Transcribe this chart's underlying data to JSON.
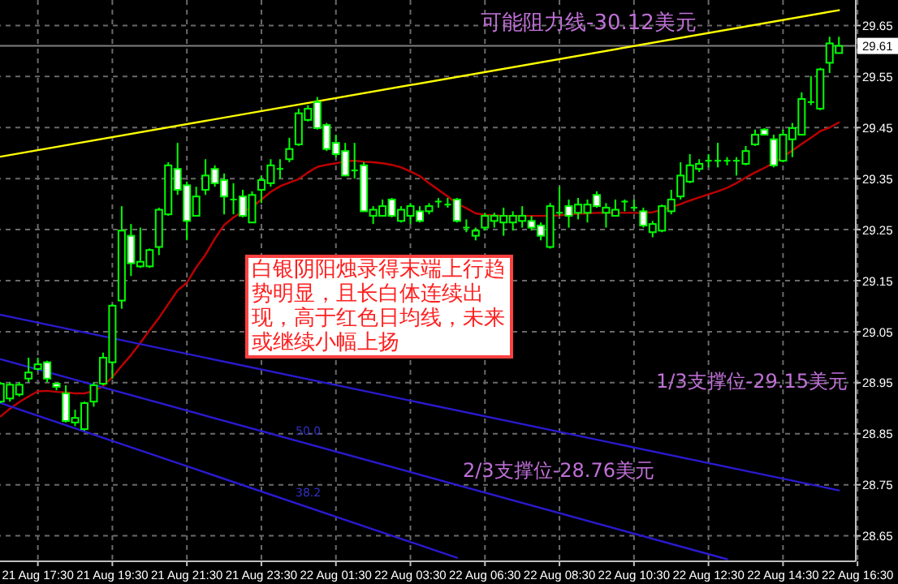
{
  "chart_data": {
    "type": "candlestick",
    "categories": [
      null,
      null,
      null,
      null,
      "21 Aug 17:30",
      null,
      null,
      null,
      null,
      null,
      null,
      null,
      "21 Aug 19:30",
      null,
      null,
      null,
      null,
      null,
      null,
      null,
      "21 Aug 21:30",
      null,
      null,
      null,
      null,
      null,
      null,
      null,
      "21 Aug 23:30",
      null,
      null,
      null,
      null,
      null,
      null,
      null,
      "22 Aug 01:30",
      null,
      null,
      null,
      null,
      null,
      null,
      null,
      "22 Aug 03:30",
      null,
      null,
      null,
      null,
      null,
      null,
      null,
      "22 Aug 06:30",
      null,
      null,
      null,
      null,
      null,
      null,
      null,
      "22 Aug 08:30",
      null,
      null,
      null,
      null,
      null,
      null,
      null,
      "22 Aug 10:30",
      null,
      null,
      null,
      null,
      null,
      null,
      null,
      "22 Aug 12:30",
      null,
      null,
      null,
      null,
      null,
      null,
      null,
      "22 Aug 14:30",
      null,
      null,
      null,
      null,
      null,
      null,
      null,
      "22 Aug 16:30"
    ],
    "ylim": [
      28.6,
      29.7
    ],
    "yticks": [
      28.65,
      28.75,
      28.85,
      28.95,
      29.05,
      29.15,
      29.25,
      29.35,
      29.45,
      29.55,
      29.65
    ],
    "grid": true,
    "color": "#00ff00",
    "ohlc": [
      [
        28.913,
        28.951,
        28.91,
        28.948
      ],
      [
        28.919,
        28.951,
        28.913,
        28.946
      ],
      [
        28.927,
        28.951,
        28.923,
        28.946
      ],
      [
        28.958,
        28.999,
        28.951,
        28.97
      ],
      [
        28.977,
        28.999,
        28.974,
        28.986
      ],
      [
        28.99,
        28.993,
        28.951,
        28.958
      ],
      [
        28.948,
        28.951,
        28.935,
        28.942
      ],
      [
        28.929,
        28.945,
        28.872,
        28.875
      ],
      [
        28.872,
        28.897,
        28.865,
        28.881
      ],
      [
        28.859,
        28.913,
        28.856,
        28.91
      ],
      [
        28.913,
        28.951,
        28.903,
        28.945
      ],
      [
        28.948,
        29.009,
        28.945,
        28.999
      ],
      [
        28.99,
        29.104,
        28.958,
        29.101
      ],
      [
        29.111,
        29.296,
        29.095,
        29.248
      ],
      [
        29.238,
        29.261,
        29.159,
        29.184
      ],
      [
        29.178,
        29.254,
        29.175,
        29.187
      ],
      [
        29.178,
        29.213,
        29.175,
        29.21
      ],
      [
        29.216,
        29.293,
        29.2,
        29.289
      ],
      [
        29.28,
        29.382,
        29.277,
        29.376
      ],
      [
        29.369,
        29.42,
        29.318,
        29.328
      ],
      [
        29.337,
        29.344,
        29.229,
        29.267
      ],
      [
        29.277,
        29.334,
        29.277,
        29.315
      ],
      [
        29.328,
        29.388,
        29.318,
        29.356
      ],
      [
        29.369,
        29.376,
        29.334,
        29.341
      ],
      [
        29.347,
        29.36,
        29.28,
        29.315
      ],
      [
        29.309,
        29.341,
        29.28,
        29.309
      ],
      [
        29.315,
        29.328,
        29.274,
        29.277
      ],
      [
        29.264,
        29.325,
        29.264,
        29.318
      ],
      [
        29.328,
        29.356,
        29.302,
        29.347
      ],
      [
        29.341,
        29.388,
        29.334,
        29.376
      ],
      [
        29.369,
        29.388,
        29.35,
        29.369
      ],
      [
        29.388,
        29.43,
        29.382,
        29.408
      ],
      [
        29.417,
        29.487,
        29.414,
        29.478
      ],
      [
        29.465,
        29.494,
        29.462,
        29.487
      ],
      [
        29.5,
        29.51,
        29.446,
        29.449
      ],
      [
        29.455,
        29.459,
        29.404,
        29.408
      ],
      [
        29.42,
        29.436,
        29.392,
        29.398
      ],
      [
        29.404,
        29.42,
        29.356,
        29.356
      ],
      [
        29.366,
        29.42,
        29.35,
        29.366
      ],
      [
        29.376,
        29.382,
        29.286,
        29.286
      ],
      [
        29.277,
        29.296,
        29.261,
        29.289
      ],
      [
        29.277,
        29.309,
        29.277,
        29.296
      ],
      [
        29.309,
        29.312,
        29.274,
        29.277
      ],
      [
        29.267,
        29.296,
        29.264,
        29.289
      ],
      [
        29.277,
        29.302,
        29.261,
        29.296
      ],
      [
        29.286,
        29.296,
        29.264,
        29.267
      ],
      [
        29.286,
        29.302,
        29.28,
        29.296
      ],
      [
        29.305,
        29.312,
        29.293,
        29.305
      ],
      [
        29.299,
        29.312,
        29.293,
        29.299
      ],
      [
        29.309,
        29.312,
        29.264,
        29.267
      ],
      [
        29.254,
        29.27,
        29.245,
        29.254
      ],
      [
        29.238,
        29.254,
        29.229,
        29.248
      ],
      [
        29.254,
        29.283,
        29.248,
        29.277
      ],
      [
        29.267,
        29.283,
        29.254,
        29.277
      ],
      [
        29.264,
        29.293,
        29.238,
        29.277
      ],
      [
        29.264,
        29.286,
        29.248,
        29.277
      ],
      [
        29.267,
        29.296,
        29.254,
        29.277
      ],
      [
        29.267,
        29.277,
        29.248,
        29.254
      ],
      [
        29.258,
        29.264,
        29.229,
        29.238
      ],
      [
        29.216,
        29.302,
        29.213,
        29.296
      ],
      [
        29.283,
        29.334,
        29.277,
        29.283
      ],
      [
        29.296,
        29.309,
        29.254,
        29.277
      ],
      [
        29.283,
        29.312,
        29.27,
        29.299
      ],
      [
        29.283,
        29.309,
        29.264,
        29.299
      ],
      [
        29.318,
        29.325,
        29.293,
        29.296
      ],
      [
        29.283,
        29.302,
        29.254,
        29.293
      ],
      [
        29.277,
        29.309,
        29.277,
        29.289
      ],
      [
        29.305,
        29.309,
        29.286,
        29.305
      ],
      [
        29.293,
        29.309,
        29.286,
        29.293
      ],
      [
        29.286,
        29.293,
        29.254,
        29.258
      ],
      [
        29.245,
        29.267,
        29.235,
        29.261
      ],
      [
        29.248,
        29.299,
        29.245,
        29.296
      ],
      [
        29.286,
        29.328,
        29.28,
        29.309
      ],
      [
        29.315,
        29.382,
        29.309,
        29.356
      ],
      [
        29.344,
        29.398,
        29.341,
        29.376
      ],
      [
        29.369,
        29.388,
        29.363,
        29.379
      ],
      [
        29.385,
        29.398,
        29.372,
        29.385
      ],
      [
        29.385,
        29.42,
        29.372,
        29.385
      ],
      [
        29.385,
        29.392,
        29.376,
        29.385
      ],
      [
        29.385,
        29.392,
        29.356,
        29.385
      ],
      [
        29.379,
        29.414,
        29.376,
        29.404
      ],
      [
        29.417,
        29.446,
        29.414,
        29.436
      ],
      [
        29.446,
        29.449,
        29.436,
        29.436
      ],
      [
        29.427,
        29.436,
        29.372,
        29.376
      ],
      [
        29.385,
        29.446,
        29.382,
        29.436
      ],
      [
        29.427,
        29.459,
        29.392,
        29.449
      ],
      [
        29.436,
        29.519,
        29.436,
        29.506
      ],
      [
        29.5,
        29.551,
        29.494,
        29.5
      ],
      [
        29.487,
        29.567,
        29.484,
        29.564
      ],
      [
        29.577,
        29.628,
        29.557,
        29.615
      ],
      [
        29.596,
        29.628,
        29.596,
        29.61
      ],
      null,
      null
    ],
    "series": [
      {
        "type": "line",
        "color": "#c00000",
        "values": [
          28.884,
          28.899,
          28.912,
          28.923,
          28.933,
          28.934,
          28.932,
          28.931,
          28.929,
          28.929,
          28.934,
          28.943,
          28.961,
          28.983,
          29.004,
          29.028,
          29.053,
          29.077,
          29.104,
          29.131,
          29.146,
          29.176,
          29.201,
          29.232,
          29.259,
          29.274,
          29.285,
          29.294,
          29.309,
          29.324,
          29.335,
          29.342,
          29.349,
          29.362,
          29.373,
          29.377,
          29.38,
          29.384,
          29.385,
          29.383,
          29.382,
          29.38,
          29.377,
          29.372,
          29.364,
          29.355,
          29.341,
          29.328,
          29.315,
          29.301,
          29.292,
          29.282,
          29.279,
          29.278,
          29.277,
          29.277,
          29.277,
          29.277,
          29.277,
          29.277,
          29.278,
          29.28,
          29.281,
          29.282,
          29.283,
          29.283,
          29.283,
          29.283,
          29.283,
          29.283,
          29.284,
          29.289,
          29.294,
          29.3,
          29.307,
          29.313,
          29.319,
          29.325,
          29.332,
          29.341,
          29.352,
          29.362,
          29.371,
          29.381,
          29.393,
          29.405,
          29.418,
          29.43,
          29.443,
          29.45,
          29.46,
          null,
          null
        ]
      },
      {
        "type": "line",
        "color": "#ffff00",
        "values": [
          29.393,
          null,
          null,
          null,
          null,
          null,
          null,
          null,
          null,
          null,
          null,
          null,
          null,
          null,
          null,
          null,
          null,
          null,
          null,
          null,
          null,
          null,
          null,
          null,
          null,
          null,
          null,
          null,
          null,
          null,
          null,
          null,
          null,
          null,
          null,
          null,
          null,
          null,
          null,
          null,
          null,
          null,
          null,
          null,
          null,
          null,
          null,
          null,
          null,
          null,
          null,
          null,
          null,
          null,
          null,
          null,
          null,
          null,
          null,
          null,
          null,
          null,
          null,
          null,
          null,
          null,
          null,
          null,
          null,
          null,
          null,
          null,
          null,
          null,
          null,
          null,
          null,
          null,
          null,
          null,
          null,
          null,
          null,
          null,
          null,
          null,
          null,
          null,
          null,
          null,
          29.68,
          null,
          null
        ]
      },
      {
        "type": "line",
        "color": "#2a1ad0",
        "values": [
          29.083,
          null,
          null,
          null,
          null,
          null,
          null,
          null,
          null,
          null,
          null,
          null,
          null,
          null,
          null,
          null,
          null,
          null,
          null,
          null,
          null,
          null,
          null,
          null,
          null,
          null,
          null,
          null,
          null,
          null,
          null,
          null,
          null,
          null,
          null,
          null,
          null,
          null,
          null,
          null,
          null,
          null,
          null,
          null,
          null,
          null,
          null,
          null,
          null,
          null,
          null,
          null,
          null,
          null,
          null,
          null,
          null,
          null,
          null,
          null,
          null,
          null,
          null,
          null,
          null,
          null,
          null,
          null,
          null,
          null,
          null,
          null,
          null,
          null,
          null,
          null,
          null,
          null,
          null,
          null,
          null,
          null,
          null,
          null,
          null,
          null,
          null,
          null,
          null,
          null,
          28.739,
          null,
          null
        ]
      },
      {
        "type": "line",
        "color": "#2a1ad0",
        "values": [
          28.996,
          null,
          null,
          null,
          null,
          null,
          null,
          null,
          null,
          null,
          null,
          null,
          null,
          null,
          null,
          null,
          null,
          null,
          null,
          null,
          null,
          null,
          null,
          null,
          null,
          null,
          null,
          null,
          null,
          null,
          null,
          null,
          null,
          null,
          null,
          null,
          null,
          null,
          null,
          null,
          null,
          null,
          null,
          null,
          null,
          null,
          null,
          null,
          null,
          null,
          null,
          null,
          null,
          null,
          null,
          null,
          null,
          null,
          null,
          null,
          null,
          null,
          null,
          null,
          null,
          null,
          null,
          null,
          null,
          null,
          null,
          null,
          null,
          null,
          null,
          null,
          null,
          null,
          28.604,
          null,
          null,
          null,
          null,
          null,
          null,
          null,
          null,
          null,
          null,
          null,
          null,
          null,
          null
        ]
      },
      {
        "type": "line",
        "color": "#2a1ad0",
        "values": [
          28.91,
          null,
          null,
          null,
          null,
          null,
          null,
          null,
          null,
          null,
          null,
          null,
          null,
          null,
          null,
          null,
          null,
          null,
          null,
          null,
          null,
          null,
          null,
          null,
          null,
          null,
          null,
          null,
          null,
          null,
          null,
          null,
          null,
          null,
          null,
          null,
          null,
          null,
          null,
          null,
          null,
          null,
          null,
          null,
          null,
          null,
          null,
          null,
          null,
          28.607,
          null,
          null,
          null,
          null,
          null,
          null,
          null,
          null,
          null,
          null,
          null,
          null,
          null,
          null,
          null,
          null,
          null,
          null,
          null,
          null,
          null,
          null,
          null,
          null,
          null,
          null,
          null,
          null,
          null,
          null,
          null,
          null,
          null,
          null,
          null,
          null,
          null,
          null,
          null,
          null,
          null,
          null,
          null
        ]
      }
    ],
    "ref_lines": [
      {
        "axis": "y",
        "value": 29.61,
        "label": "29.61",
        "color": "#808080"
      }
    ],
    "annotations": [
      "可能阻力线-30.12美元",
      "白银阴阳烛录得末端上行趋势明显，且长白体连续出现，高于红色日均线，未来或继续小幅上扬",
      "1/3支撑位-29.15美元",
      "2/3支撑位-28.76美元",
      "50.0",
      "38.2"
    ]
  }
}
